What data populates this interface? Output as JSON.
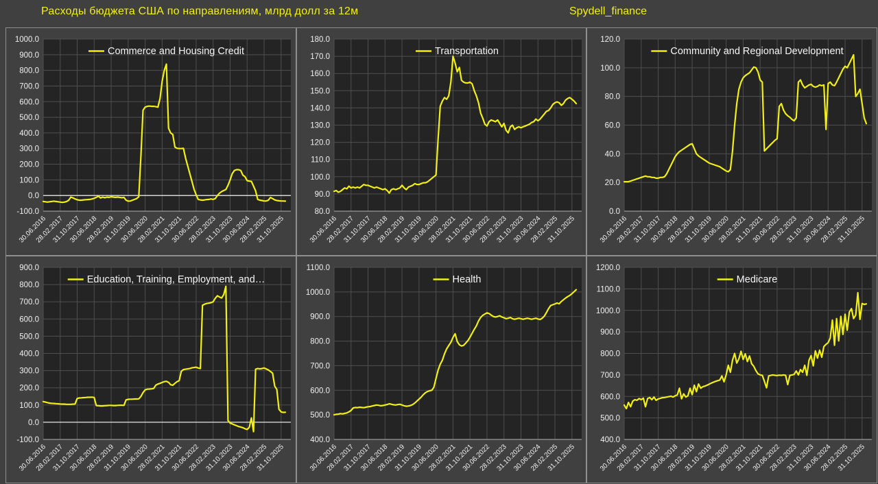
{
  "page": {
    "title": "Расходы бюджета США по направлениям, млрд долл за 12м",
    "watermark": "Spydell_finance"
  },
  "colors": {
    "page_background": "#404040",
    "plot_background": "#242424",
    "gridline": "#4f4f4f",
    "panel_border": "#8f8f8f",
    "axis_line": "#9a9a9a",
    "zero_line": "#e6e6e6",
    "series_line": "#f2ef16",
    "tick_text": "#f0f0f0",
    "legend_text": "#f5f5f5",
    "title_text": "#f2ef16"
  },
  "x_axis": {
    "tick_labels": [
      "30.06.2016",
      "28.02.2017",
      "31.10.2017",
      "30.06.2018",
      "28.02.2019",
      "31.10.2019",
      "30.06.2020",
      "28.02.2021",
      "31.10.2021",
      "30.06.2022",
      "28.02.2023",
      "31.10.2023",
      "30.06.2024",
      "28.02.2025",
      "31.10.2025"
    ],
    "tick_interval_months": 8,
    "frequency": "monthly",
    "start": "30.06.2016",
    "end": "31.12.2025"
  },
  "chart_data": [
    {
      "type": "line",
      "title": "Commerce and Housing Credit",
      "ylim": [
        -100,
        1000
      ],
      "ytick_step": 100,
      "units": "млрд долл за 12м",
      "values": [
        -38,
        -40,
        -42,
        -40,
        -38,
        -36,
        -38,
        -40,
        -42,
        -44,
        -42,
        -38,
        -30,
        -10,
        -15,
        -22,
        -27,
        -30,
        -30,
        -28,
        -27,
        -26,
        -25,
        -22,
        -18,
        -12,
        -4,
        -16,
        -10,
        -14,
        -10,
        -12,
        -8,
        -10,
        -12,
        -10,
        -12,
        -14,
        -12,
        -30,
        -36,
        -35,
        -30,
        -25,
        -20,
        -8,
        250,
        545,
        565,
        570,
        572,
        570,
        570,
        568,
        565,
        620,
        730,
        800,
        840,
        430,
        400,
        390,
        310,
        302,
        300,
        300,
        302,
        240,
        190,
        140,
        90,
        40,
        5,
        -25,
        -28,
        -30,
        -28,
        -26,
        -25,
        -22,
        -25,
        -20,
        0,
        15,
        25,
        32,
        38,
        65,
        100,
        140,
        160,
        165,
        165,
        160,
        130,
        120,
        95,
        92,
        90,
        60,
        30,
        -25,
        -30,
        -32,
        -35,
        -35,
        -30,
        -13,
        -20,
        -28,
        -32,
        -34,
        -35,
        -35,
        -36
      ]
    },
    {
      "type": "line",
      "title": "Transportation",
      "ylim": [
        80,
        180
      ],
      "ytick_step": 10,
      "units": "млрд долл за 12м",
      "values": [
        91.5,
        92.0,
        91.0,
        91.5,
        92.5,
        93.5,
        93.0,
        94.5,
        93.5,
        94.0,
        93.5,
        94.0,
        93.5,
        94.5,
        95.5,
        95.0,
        95.0,
        94.5,
        94.0,
        93.5,
        94.0,
        93.5,
        93.0,
        92.5,
        93.0,
        92.0,
        90.5,
        92.5,
        93.0,
        92.5,
        93.0,
        93.5,
        95.0,
        93.5,
        92.5,
        94.0,
        94.5,
        95.0,
        96.0,
        95.5,
        95.5,
        96.0,
        96.5,
        96.5,
        97.0,
        98.0,
        99.0,
        100.0,
        101.0,
        122.0,
        141.0,
        144.0,
        146.0,
        145.0,
        147.0,
        155.0,
        170.0,
        166.0,
        161.0,
        163.5,
        156.0,
        155.0,
        154.5,
        154.5,
        155.0,
        154.0,
        150.0,
        147.0,
        143.0,
        137.0,
        134.0,
        130.5,
        129.5,
        132.0,
        133.0,
        132.5,
        132.0,
        133.0,
        131.0,
        129.0,
        131.0,
        127.0,
        125.5,
        129.0,
        130.0,
        127.5,
        128.5,
        129.0,
        128.5,
        129.0,
        129.5,
        130.0,
        130.5,
        131.5,
        132.0,
        133.5,
        132.5,
        133.5,
        135.0,
        136.5,
        138.0,
        138.5,
        140.0,
        142.0,
        143.0,
        143.5,
        143.0,
        141.5,
        142.5,
        144.5,
        145.5,
        146.0,
        145.0,
        144.0,
        142.5
      ]
    },
    {
      "type": "line",
      "title": "Community and Regional Development",
      "ylim": [
        0,
        120
      ],
      "ytick_step": 20,
      "units": "млрд долл за 12м",
      "values": [
        20.5,
        20.5,
        20.5,
        21.0,
        21.5,
        22.0,
        22.5,
        23.0,
        23.5,
        24.0,
        24.5,
        24.0,
        24.0,
        23.5,
        23.5,
        23.0,
        23.0,
        23.5,
        23.5,
        24.0,
        26.0,
        29.0,
        32.0,
        35.0,
        38.0,
        40.0,
        41.5,
        42.5,
        43.5,
        44.5,
        45.5,
        46.5,
        47.0,
        43.5,
        40.0,
        38.5,
        37.5,
        36.5,
        35.5,
        34.5,
        33.5,
        33.0,
        32.5,
        32.0,
        31.5,
        31.0,
        30.0,
        29.0,
        28.0,
        27.5,
        29.0,
        42.0,
        60.0,
        75.0,
        85.0,
        90.0,
        93.0,
        94.5,
        95.5,
        96.5,
        98.5,
        100.5,
        100.0,
        97.0,
        91.5,
        90.0,
        42.0,
        43.5,
        45.0,
        46.5,
        48.0,
        49.5,
        50.5,
        73.0,
        75.0,
        70.5,
        68.0,
        66.5,
        65.5,
        64.0,
        63.0,
        65.0,
        90.0,
        91.5,
        88.0,
        86.0,
        87.0,
        88.0,
        88.5,
        87.0,
        86.5,
        87.0,
        88.0,
        87.5,
        88.0,
        57.0,
        89.0,
        90.0,
        88.0,
        87.5,
        90.0,
        93.0,
        96.0,
        99.0,
        101.0,
        100.0,
        103.0,
        106.0,
        109.0,
        80.0,
        82.0,
        85.0,
        75.0,
        65.0,
        61.0
      ]
    },
    {
      "type": "line",
      "title": "Education, Training, Employment, and…",
      "ylim": [
        -100,
        900
      ],
      "ytick_step": 100,
      "units": "млрд долл за 12м",
      "values": [
        120,
        117,
        114,
        111,
        110,
        109,
        108,
        107,
        106,
        105,
        105,
        104,
        104,
        104,
        105,
        106,
        138,
        141,
        142,
        143,
        144,
        145,
        145,
        146,
        144,
        97,
        96,
        95,
        95,
        96,
        97,
        98,
        98,
        97,
        97,
        98,
        99,
        99,
        98,
        130,
        133,
        134,
        134,
        135,
        135,
        136,
        150,
        172,
        188,
        192,
        193,
        194,
        196,
        215,
        222,
        226,
        231,
        236,
        238,
        232,
        218,
        215,
        226,
        236,
        242,
        296,
        306,
        308,
        310,
        312,
        316,
        318,
        320,
        315,
        312,
        680,
        686,
        690,
        692,
        695,
        700,
        720,
        735,
        728,
        722,
        742,
        790,
        10,
        -5,
        -10,
        -15,
        -20,
        -25,
        -28,
        -32,
        -38,
        -42,
        -30,
        25,
        -55,
        308,
        312,
        310,
        312,
        315,
        310,
        304,
        295,
        285,
        210,
        190,
        75,
        60,
        57,
        58
      ]
    },
    {
      "type": "line",
      "title": "Health",
      "ylim": [
        400,
        1100
      ],
      "ytick_step": 100,
      "units": "млрд долл за 12м",
      "values": [
        500,
        502,
        503,
        505,
        504,
        506,
        508,
        512,
        518,
        528,
        530,
        529,
        531,
        530,
        529,
        531,
        533,
        534,
        536,
        538,
        540,
        539,
        537,
        538,
        540,
        542,
        545,
        543,
        541,
        540,
        542,
        543,
        540,
        537,
        535,
        536,
        538,
        542,
        548,
        556,
        564,
        572,
        582,
        590,
        595,
        598,
        600,
        612,
        648,
        682,
        706,
        722,
        748,
        768,
        782,
        795,
        815,
        830,
        798,
        785,
        780,
        783,
        792,
        802,
        816,
        832,
        848,
        862,
        882,
        896,
        905,
        910,
        915,
        912,
        906,
        900,
        898,
        900,
        903,
        898,
        895,
        891,
        893,
        896,
        891,
        889,
        891,
        893,
        891,
        889,
        891,
        893,
        891,
        889,
        891,
        893,
        890,
        888,
        893,
        902,
        916,
        932,
        945,
        948,
        951,
        955,
        952,
        961,
        968,
        975,
        981,
        986,
        993,
        1001,
        1009
      ]
    },
    {
      "type": "line",
      "title": "Medicare",
      "ylim": [
        400,
        1200
      ],
      "ytick_step": 100,
      "units": "млрд долл за 12м",
      "values": [
        560,
        543,
        572,
        552,
        578,
        585,
        582,
        590,
        585,
        592,
        552,
        590,
        595,
        585,
        597,
        582,
        588,
        591,
        594,
        595,
        597,
        599,
        601,
        597,
        603,
        607,
        638,
        589,
        612,
        597,
        603,
        638,
        608,
        652,
        622,
        658,
        638,
        645,
        648,
        652,
        657,
        662,
        666,
        670,
        673,
        676,
        695,
        668,
        700,
        745,
        712,
        768,
        800,
        755,
        775,
        810,
        772,
        798,
        762,
        788,
        752,
        740,
        720,
        705,
        700,
        698,
        670,
        640,
        695,
        698,
        700,
        698,
        697,
        699,
        698,
        700,
        698,
        655,
        698,
        700,
        702,
        718,
        700,
        725,
        712,
        745,
        698,
        768,
        790,
        742,
        812,
        778,
        815,
        782,
        832,
        842,
        850,
        872,
        955,
        838,
        962,
        858,
        972,
        888,
        982,
        908,
        992,
        1008,
        962,
        978,
        1082,
        958,
        1032,
        1028,
        1030
      ]
    }
  ]
}
